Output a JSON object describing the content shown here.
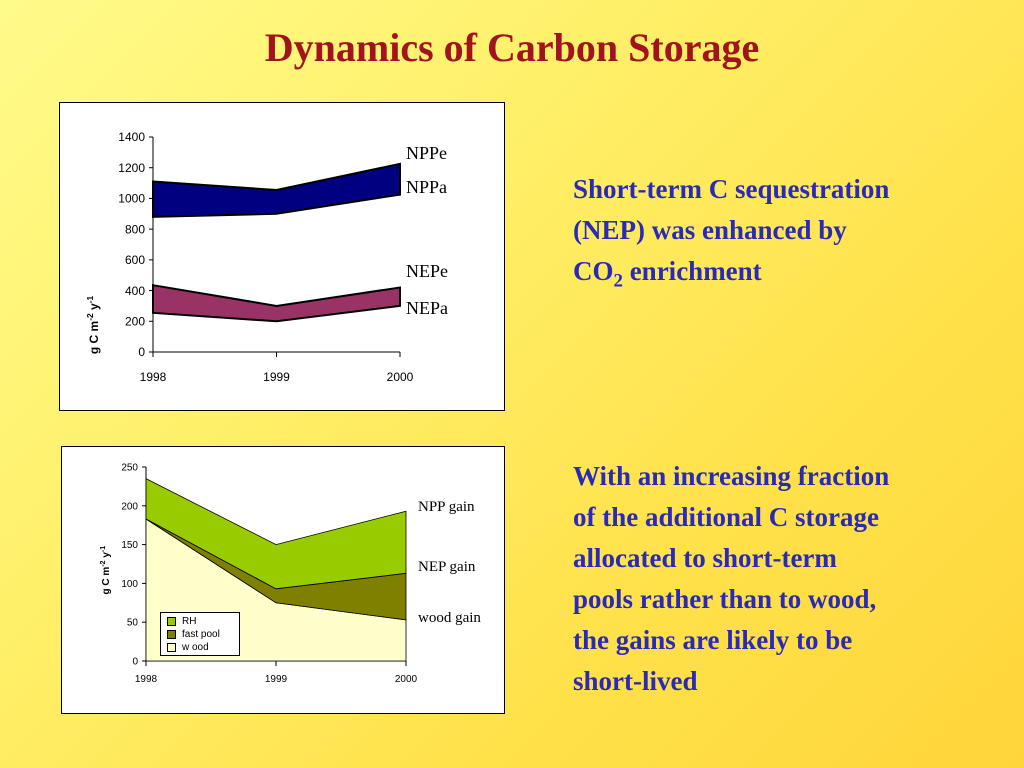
{
  "title": "Dynamics of Carbon Storage",
  "colors": {
    "title": "#a0141e",
    "body_text": "#2a2ab8",
    "npp_band": "#000080",
    "nep_band": "#993366",
    "rh": "#99cc00",
    "fast_pool": "#808000",
    "wood": "#ffffcc"
  },
  "paragraph1": {
    "line1": "Short-term C sequestration",
    "line2": "(NEP) was enhanced by",
    "line3_pre": "CO",
    "line3_sub": "2",
    "line3_post": " enrichment"
  },
  "paragraph2": {
    "lines": [
      "With an increasing fraction",
      "of the additional C storage",
      "allocated to short-term",
      "pools rather than to wood,",
      "the gains are likely to be",
      "short-lived"
    ]
  },
  "chart_data": [
    {
      "type": "area",
      "title": "",
      "ylabel_main": "g C m",
      "ylabel_exp1": "-2",
      "ylabel_mid": " y",
      "ylabel_exp2": "-1",
      "categories": [
        "1998",
        "1999",
        "2000"
      ],
      "ylim": [
        0,
        1400
      ],
      "yticks": [
        0,
        200,
        400,
        600,
        800,
        1000,
        1200,
        1400
      ],
      "series": [
        {
          "name": "NPPe",
          "values": [
            1110,
            1055,
            1225
          ]
        },
        {
          "name": "NPPa",
          "values": [
            880,
            900,
            1025
          ]
        },
        {
          "name": "NEPe",
          "values": [
            435,
            300,
            420
          ]
        },
        {
          "name": "NEPa",
          "values": [
            255,
            200,
            300
          ]
        }
      ],
      "grid": false
    },
    {
      "type": "area",
      "title": "",
      "ylabel_main": "g C m",
      "ylabel_exp1": "-2",
      "ylabel_mid": " y",
      "ylabel_exp2": "-1",
      "categories": [
        "1998",
        "1999",
        "2000"
      ],
      "ylim": [
        0,
        250
      ],
      "yticks": [
        0,
        50,
        100,
        150,
        200,
        250
      ],
      "series": [
        {
          "name": "wood",
          "values": [
            183,
            75,
            53
          ]
        },
        {
          "name": "fast pool",
          "values": [
            0,
            18,
            60
          ]
        },
        {
          "name": "RH",
          "values": [
            52,
            57,
            80
          ]
        }
      ],
      "annotations": [
        "NPP gain",
        "NEP gain",
        "wood gain"
      ],
      "legend_entries": [
        "RH",
        "fast pool",
        "w ood"
      ],
      "legend": "bottom-left",
      "grid": false
    }
  ]
}
